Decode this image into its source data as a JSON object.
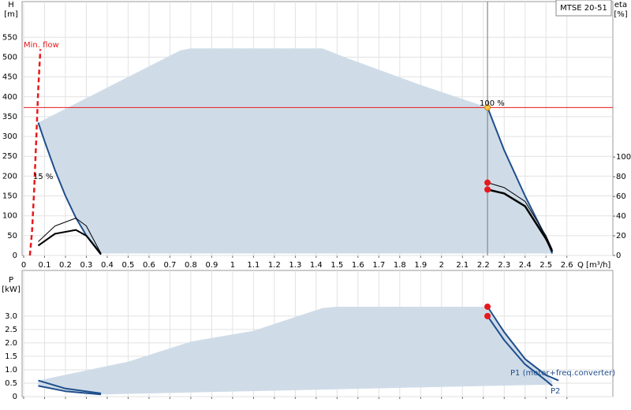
{
  "chart_data": [
    {
      "type": "line",
      "label": "MTSE 20-51",
      "x_label": "Q [m³/h]",
      "y_label": "H",
      "y_unit": "[m]",
      "y2_label": "eta",
      "y2_unit": "[%]",
      "xlim": [
        0,
        2.82
      ],
      "xticks": [
        0,
        0.1,
        0.2,
        0.3,
        0.4,
        0.5,
        0.6,
        0.7,
        0.8,
        0.9,
        1,
        1.1,
        1.2,
        1.3,
        1.4,
        1.5,
        1.6,
        1.7,
        1.8,
        1.9,
        2,
        2.1,
        2.2,
        2.3,
        2.4,
        2.5,
        2.6
      ],
      "ylim": [
        0,
        640
      ],
      "yticks": [
        0,
        50,
        100,
        150,
        200,
        250,
        300,
        350,
        400,
        450,
        500,
        550
      ],
      "y2lim": [
        0,
        258
      ],
      "y2ticks": [
        0,
        20,
        40,
        60,
        80,
        100
      ],
      "grid": true,
      "series": [
        {
          "style": "area",
          "color": "#cfdce8",
          "x": [
            0.07,
            0.75,
            0.8,
            1.43,
            1.55,
            1.9,
            2.22,
            2.3,
            2.4,
            2.5,
            2.53,
            0.37,
            0.3,
            0.25,
            0.2,
            0.15,
            0.1
          ],
          "values": [
            335,
            517,
            522,
            522,
            497,
            430,
            373,
            265,
            150,
            45,
            5,
            5,
            50,
            95,
            150,
            215,
            288
          ]
        },
        {
          "style": "line",
          "color": "#1f4e8c",
          "width": 2,
          "x": [
            0.07,
            0.1,
            0.15,
            0.2,
            0.25,
            0.3,
            0.37
          ],
          "values": [
            335,
            288,
            215,
            150,
            95,
            50,
            5
          ]
        },
        {
          "style": "line",
          "color": "#1f4e8c",
          "width": 2,
          "x": [
            2.22,
            2.3,
            2.4,
            2.5,
            2.53
          ],
          "values": [
            373,
            265,
            150,
            45,
            5
          ]
        },
        {
          "style": "dashed",
          "color": "#e8191c",
          "width": 2.5,
          "x": [
            0.03,
            0.04,
            0.05,
            0.06,
            0.07,
            0.08
          ],
          "values": [
            0,
            60,
            160,
            290,
            420,
            520
          ]
        },
        {
          "style": "line",
          "axis": "y2",
          "color": "#000000",
          "width": 1,
          "x": [
            0.07,
            0.15,
            0.25,
            0.3,
            0.37
          ],
          "values": [
            14,
            30,
            38,
            30,
            2
          ]
        },
        {
          "style": "line",
          "axis": "y2",
          "color": "#000000",
          "width": 2,
          "x": [
            0.07,
            0.15,
            0.25,
            0.3,
            0.37
          ],
          "values": [
            10,
            22,
            26,
            20,
            1
          ]
        },
        {
          "style": "line",
          "axis": "y2",
          "color": "#000000",
          "width": 1,
          "x": [
            2.22,
            2.3,
            2.4,
            2.5,
            2.53
          ],
          "values": [
            74,
            69,
            55,
            20,
            6
          ]
        },
        {
          "style": "line",
          "axis": "y2",
          "color": "#000000",
          "width": 2.5,
          "x": [
            2.22,
            2.3,
            2.4,
            2.5,
            2.53
          ],
          "values": [
            67,
            63,
            50,
            17,
            4
          ]
        },
        {
          "style": "hline",
          "color": "#e8191c",
          "values": [
            373
          ]
        },
        {
          "style": "vline",
          "color": "#888888",
          "x": [
            2.22
          ]
        },
        {
          "style": "points",
          "axis": "y2",
          "color": "#e8191c",
          "x": [
            2.22,
            2.22
          ],
          "values": [
            74,
            67
          ]
        },
        {
          "style": "points",
          "color": "#f5c542",
          "edge": "#d08000",
          "x": [
            2.22
          ],
          "values": [
            373
          ]
        }
      ],
      "annotations": [
        {
          "text": "Min. flow",
          "color": "#e8191c"
        },
        {
          "text": "15 %",
          "color": "#000000"
        },
        {
          "text": "100 %",
          "color": "#000000"
        }
      ]
    },
    {
      "type": "line",
      "y_label": "P",
      "y_unit": "[kW]",
      "xlim": [
        0,
        2.82
      ],
      "ylim": [
        0,
        4.7
      ],
      "yticks": [
        0,
        0.5,
        {
          "value": 1,
          "label": "1.0"
        },
        1.5,
        {
          "value": 2,
          "label": "2.0"
        },
        2.5,
        {
          "value": 3,
          "label": "3.0"
        }
      ],
      "grid": true,
      "series": [
        {
          "style": "area",
          "color": "#cfdce8",
          "x": [
            0.07,
            0.5,
            0.8,
            1.1,
            1.43,
            1.5,
            2.22,
            2.3,
            2.4,
            2.53,
            2.53,
            0.37,
            0.2,
            0.07
          ],
          "values": [
            0.6,
            1.3,
            2.05,
            2.45,
            3.3,
            3.35,
            3.35,
            2.4,
            1.4,
            0.6,
            0.45,
            0.08,
            0.2,
            0.4
          ]
        },
        {
          "style": "line",
          "color": "#1f4e8c",
          "width": 2,
          "x": [
            0.07,
            0.2,
            0.37
          ],
          "values": [
            0.6,
            0.3,
            0.12
          ]
        },
        {
          "style": "line",
          "color": "#1f4e8c",
          "width": 2,
          "x": [
            0.07,
            0.2,
            0.37
          ],
          "values": [
            0.4,
            0.2,
            0.08
          ]
        },
        {
          "style": "line",
          "color": "#1f4e8c",
          "width": 2,
          "x": [
            2.22,
            2.3,
            2.4,
            2.5,
            2.56
          ],
          "values": [
            3.35,
            2.4,
            1.4,
            0.8,
            0.6
          ]
        },
        {
          "style": "line",
          "color": "#1f4e8c",
          "width": 2,
          "x": [
            2.22,
            2.3,
            2.4,
            2.5,
            2.53
          ],
          "values": [
            3.0,
            2.1,
            1.2,
            0.6,
            0.4
          ]
        },
        {
          "style": "points",
          "color": "#e8191c",
          "x": [
            2.22,
            2.22
          ],
          "values": [
            3.35,
            3.0
          ]
        }
      ],
      "annotations": [
        {
          "text": "P1 (motor+freq.converter)",
          "color": "#1f4e8c"
        },
        {
          "text": "P2",
          "color": "#1f4e8c"
        }
      ]
    }
  ]
}
